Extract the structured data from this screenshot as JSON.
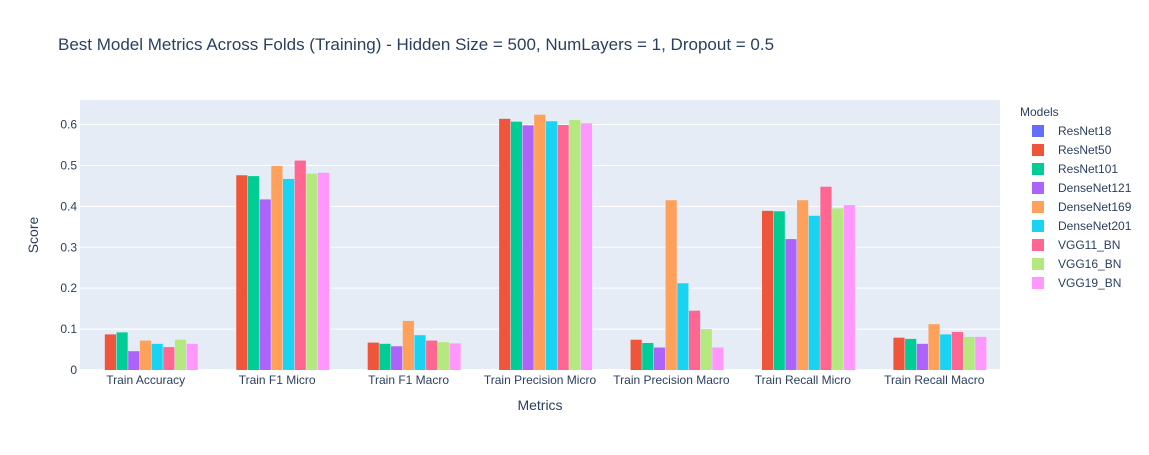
{
  "chart_data": {
    "type": "bar",
    "title": "Best Model Metrics Across Folds (Training) - Hidden Size = 500, NumLayers = 1, Dropout = 0.5",
    "xlabel": "Metrics",
    "ylabel": "Score",
    "ylim": [
      0,
      0.66
    ],
    "yticks": [
      "0",
      "0.1",
      "0.2",
      "0.3",
      "0.4",
      "0.5",
      "0.6"
    ],
    "grid": true,
    "legend_title": "Models",
    "legend_position": "right",
    "categories": [
      "Train Accuracy",
      "Train F1 Micro",
      "Train F1 Macro",
      "Train Precision Micro",
      "Train Precision Macro",
      "Train Recall Micro",
      "Train Recall Macro"
    ],
    "series": [
      {
        "name": "ResNet18",
        "color": "#636efa",
        "values": [
          0,
          0,
          0,
          0,
          0,
          0,
          0
        ]
      },
      {
        "name": "ResNet50",
        "color": "#ef553b",
        "values": [
          0.087,
          0.476,
          0.067,
          0.614,
          0.074,
          0.389,
          0.079
        ]
      },
      {
        "name": "ResNet101",
        "color": "#00cc96",
        "values": [
          0.092,
          0.474,
          0.064,
          0.607,
          0.066,
          0.388,
          0.076
        ]
      },
      {
        "name": "DenseNet121",
        "color": "#ab63fa",
        "values": [
          0.046,
          0.417,
          0.058,
          0.598,
          0.055,
          0.32,
          0.064
        ]
      },
      {
        "name": "DenseNet169",
        "color": "#ffa15a",
        "values": [
          0.072,
          0.499,
          0.12,
          0.624,
          0.415,
          0.415,
          0.112
        ]
      },
      {
        "name": "DenseNet201",
        "color": "#19d3f3",
        "values": [
          0.064,
          0.467,
          0.085,
          0.608,
          0.212,
          0.377,
          0.087
        ]
      },
      {
        "name": "VGG11_BN",
        "color": "#ff6692",
        "values": [
          0.056,
          0.512,
          0.072,
          0.599,
          0.145,
          0.448,
          0.093
        ]
      },
      {
        "name": "VGG16_BN",
        "color": "#b6e880",
        "values": [
          0.074,
          0.48,
          0.068,
          0.611,
          0.1,
          0.395,
          0.081
        ]
      },
      {
        "name": "VGG19_BN",
        "color": "#ff97ff",
        "values": [
          0.064,
          0.482,
          0.065,
          0.603,
          0.055,
          0.403,
          0.081
        ]
      }
    ]
  }
}
